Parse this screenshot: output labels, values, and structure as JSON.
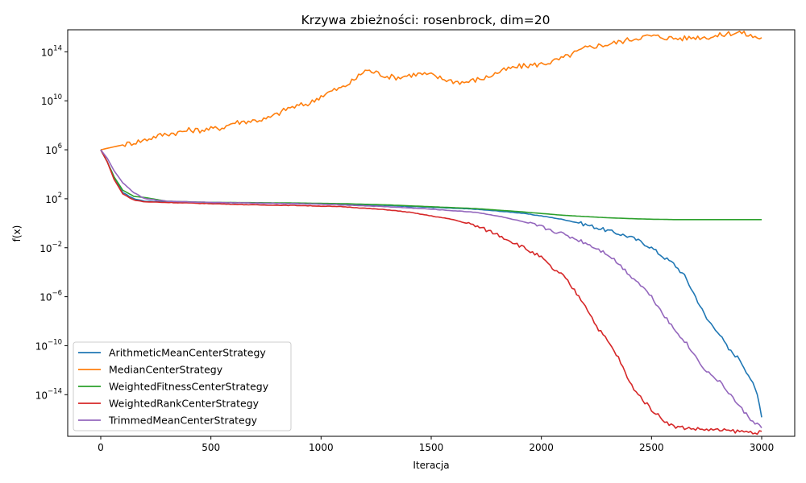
{
  "chart_data": {
    "type": "line",
    "title": "Krzywa zbieżności: rosenbrock, dim=20",
    "xlabel": "Iteracja",
    "ylabel": "f(x)",
    "xlim": [
      -150,
      3150
    ],
    "ylim_log10": [
      -17.4,
      15.8
    ],
    "yscale": "log",
    "grid": false,
    "legend_position": "lower-left",
    "x_ticks": [
      0,
      500,
      1000,
      1500,
      2000,
      2500,
      3000
    ],
    "y_ticks": [
      {
        "base": "10",
        "exp": "14",
        "log10": 14
      },
      {
        "base": "10",
        "exp": "10",
        "log10": 10
      },
      {
        "base": "10",
        "exp": "6",
        "log10": 6
      },
      {
        "base": "10",
        "exp": "2",
        "log10": 2
      },
      {
        "base": "10",
        "exp": "−2",
        "log10": -2
      },
      {
        "base": "10",
        "exp": "−6",
        "log10": -6
      },
      {
        "base": "10",
        "exp": "−10",
        "log10": -10
      },
      {
        "base": "10",
        "exp": "−14",
        "log10": -14
      }
    ],
    "series": [
      {
        "name": "ArithmeticMeanCenterStrategy",
        "color": "#1f77b4",
        "x_log10y": [
          [
            0,
            6
          ],
          [
            30,
            5
          ],
          [
            60,
            3.8
          ],
          [
            100,
            2.5
          ],
          [
            150,
            2
          ],
          [
            200,
            1.8
          ],
          [
            300,
            1.75
          ],
          [
            400,
            1.7
          ],
          [
            500,
            1.7
          ],
          [
            700,
            1.65
          ],
          [
            900,
            1.6
          ],
          [
            1100,
            1.55
          ],
          [
            1300,
            1.45
          ],
          [
            1500,
            1.3
          ],
          [
            1700,
            1.15
          ],
          [
            1900,
            0.85
          ],
          [
            2000,
            0.6
          ],
          [
            2100,
            0.3
          ],
          [
            2200,
            -0.1
          ],
          [
            2300,
            -0.6
          ],
          [
            2400,
            -1.1
          ],
          [
            2450,
            -1.5
          ],
          [
            2500,
            -2.0
          ],
          [
            2550,
            -2.7
          ],
          [
            2600,
            -3.3
          ],
          [
            2650,
            -4.3
          ],
          [
            2700,
            -6
          ],
          [
            2750,
            -7.8
          ],
          [
            2800,
            -8.8
          ],
          [
            2850,
            -10.3
          ],
          [
            2900,
            -11.1
          ],
          [
            2950,
            -12.7
          ],
          [
            2980,
            -14
          ],
          [
            3000,
            -15.7
          ]
        ]
      },
      {
        "name": "MedianCenterStrategy",
        "color": "#ff7f0e",
        "x_log10y": [
          [
            0,
            6
          ],
          [
            50,
            6.2
          ],
          [
            100,
            6.4
          ],
          [
            150,
            6.6
          ],
          [
            200,
            6.8
          ],
          [
            250,
            7.1
          ],
          [
            300,
            7.3
          ],
          [
            350,
            7.4
          ],
          [
            400,
            7.6
          ],
          [
            450,
            7.6
          ],
          [
            500,
            7.7
          ],
          [
            550,
            7.8
          ],
          [
            600,
            8.2
          ],
          [
            650,
            8.3
          ],
          [
            700,
            8.4
          ],
          [
            750,
            8.5
          ],
          [
            800,
            8.9
          ],
          [
            850,
            9.4
          ],
          [
            900,
            9.6
          ],
          [
            950,
            9.8
          ],
          [
            1000,
            10.4
          ],
          [
            1050,
            10.8
          ],
          [
            1100,
            11.1
          ],
          [
            1150,
            11.7
          ],
          [
            1200,
            12.5
          ],
          [
            1250,
            12.3
          ],
          [
            1300,
            12
          ],
          [
            1350,
            11.9
          ],
          [
            1400,
            12.1
          ],
          [
            1450,
            12.2
          ],
          [
            1500,
            12.1
          ],
          [
            1550,
            11.8
          ],
          [
            1600,
            11.6
          ],
          [
            1650,
            11.5
          ],
          [
            1700,
            11.7
          ],
          [
            1750,
            11.9
          ],
          [
            1800,
            12.3
          ],
          [
            1850,
            12.6
          ],
          [
            1900,
            12.8
          ],
          [
            1950,
            12.9
          ],
          [
            2000,
            13
          ],
          [
            2050,
            13.2
          ],
          [
            2100,
            13.5
          ],
          [
            2150,
            13.9
          ],
          [
            2200,
            14.3
          ],
          [
            2250,
            14.5
          ],
          [
            2300,
            14.6
          ],
          [
            2350,
            14.8
          ],
          [
            2400,
            15
          ],
          [
            2450,
            15.2
          ],
          [
            2500,
            15.3
          ],
          [
            2550,
            15.2
          ],
          [
            2600,
            15.1
          ],
          [
            2650,
            15.1
          ],
          [
            2700,
            15.2
          ],
          [
            2750,
            15.2
          ],
          [
            2800,
            15.3
          ],
          [
            2850,
            15.5
          ],
          [
            2900,
            15.6
          ],
          [
            2950,
            15.3
          ],
          [
            3000,
            15.1
          ]
        ]
      },
      {
        "name": "WeightedFitnessCenterStrategy",
        "color": "#2ca02c",
        "x_log10y": [
          [
            0,
            6
          ],
          [
            30,
            5
          ],
          [
            60,
            3.8
          ],
          [
            100,
            2.7
          ],
          [
            150,
            2.2
          ],
          [
            200,
            2.1
          ],
          [
            250,
            1.95
          ],
          [
            300,
            1.8
          ],
          [
            400,
            1.75
          ],
          [
            500,
            1.7
          ],
          [
            700,
            1.68
          ],
          [
            900,
            1.65
          ],
          [
            1100,
            1.6
          ],
          [
            1300,
            1.5
          ],
          [
            1500,
            1.35
          ],
          [
            1700,
            1.2
          ],
          [
            1900,
            0.95
          ],
          [
            2000,
            0.8
          ],
          [
            2100,
            0.65
          ],
          [
            2200,
            0.55
          ],
          [
            2300,
            0.45
          ],
          [
            2400,
            0.38
          ],
          [
            2500,
            0.33
          ],
          [
            2600,
            0.3
          ],
          [
            2700,
            0.3
          ],
          [
            2800,
            0.3
          ],
          [
            2900,
            0.3
          ],
          [
            3000,
            0.3
          ]
        ]
      },
      {
        "name": "WeightedRankCenterStrategy",
        "color": "#d62728",
        "x_log10y": [
          [
            0,
            6
          ],
          [
            30,
            5
          ],
          [
            60,
            3.6
          ],
          [
            100,
            2.4
          ],
          [
            150,
            1.9
          ],
          [
            200,
            1.75
          ],
          [
            300,
            1.7
          ],
          [
            400,
            1.65
          ],
          [
            500,
            1.6
          ],
          [
            700,
            1.5
          ],
          [
            900,
            1.45
          ],
          [
            1100,
            1.35
          ],
          [
            1300,
            1.1
          ],
          [
            1400,
            0.9
          ],
          [
            1500,
            0.6
          ],
          [
            1600,
            0.3
          ],
          [
            1700,
            -0.2
          ],
          [
            1800,
            -0.9
          ],
          [
            1900,
            -1.8
          ],
          [
            2000,
            -2.8
          ],
          [
            2050,
            -3.7
          ],
          [
            2100,
            -4.3
          ],
          [
            2150,
            -5.5
          ],
          [
            2200,
            -6.7
          ],
          [
            2250,
            -8.4
          ],
          [
            2300,
            -9.6
          ],
          [
            2350,
            -11
          ],
          [
            2400,
            -13
          ],
          [
            2450,
            -14.2
          ],
          [
            2500,
            -15.2
          ],
          [
            2550,
            -16
          ],
          [
            2600,
            -16.6
          ],
          [
            2700,
            -16.8
          ],
          [
            2800,
            -16.9
          ],
          [
            2900,
            -17
          ],
          [
            3000,
            -17.1
          ]
        ]
      },
      {
        "name": "TrimmedMeanCenterStrategy",
        "color": "#9467bd",
        "x_log10y": [
          [
            0,
            6
          ],
          [
            30,
            5.3
          ],
          [
            60,
            4.3
          ],
          [
            100,
            3.3
          ],
          [
            150,
            2.5
          ],
          [
            200,
            2
          ],
          [
            300,
            1.8
          ],
          [
            400,
            1.75
          ],
          [
            500,
            1.7
          ],
          [
            700,
            1.65
          ],
          [
            900,
            1.6
          ],
          [
            1100,
            1.5
          ],
          [
            1300,
            1.35
          ],
          [
            1500,
            1.15
          ],
          [
            1700,
            0.9
          ],
          [
            1800,
            0.6
          ],
          [
            1900,
            0.2
          ],
          [
            2000,
            -0.3
          ],
          [
            2100,
            -0.9
          ],
          [
            2200,
            -1.6
          ],
          [
            2300,
            -2.5
          ],
          [
            2350,
            -3.3
          ],
          [
            2400,
            -4.2
          ],
          [
            2450,
            -5
          ],
          [
            2500,
            -6
          ],
          [
            2550,
            -7.3
          ],
          [
            2600,
            -8.6
          ],
          [
            2650,
            -9.6
          ],
          [
            2700,
            -10.9
          ],
          [
            2750,
            -12.1
          ],
          [
            2800,
            -12.8
          ],
          [
            2850,
            -13.8
          ],
          [
            2900,
            -15
          ],
          [
            2950,
            -16
          ],
          [
            3000,
            -16.7
          ]
        ]
      }
    ]
  }
}
